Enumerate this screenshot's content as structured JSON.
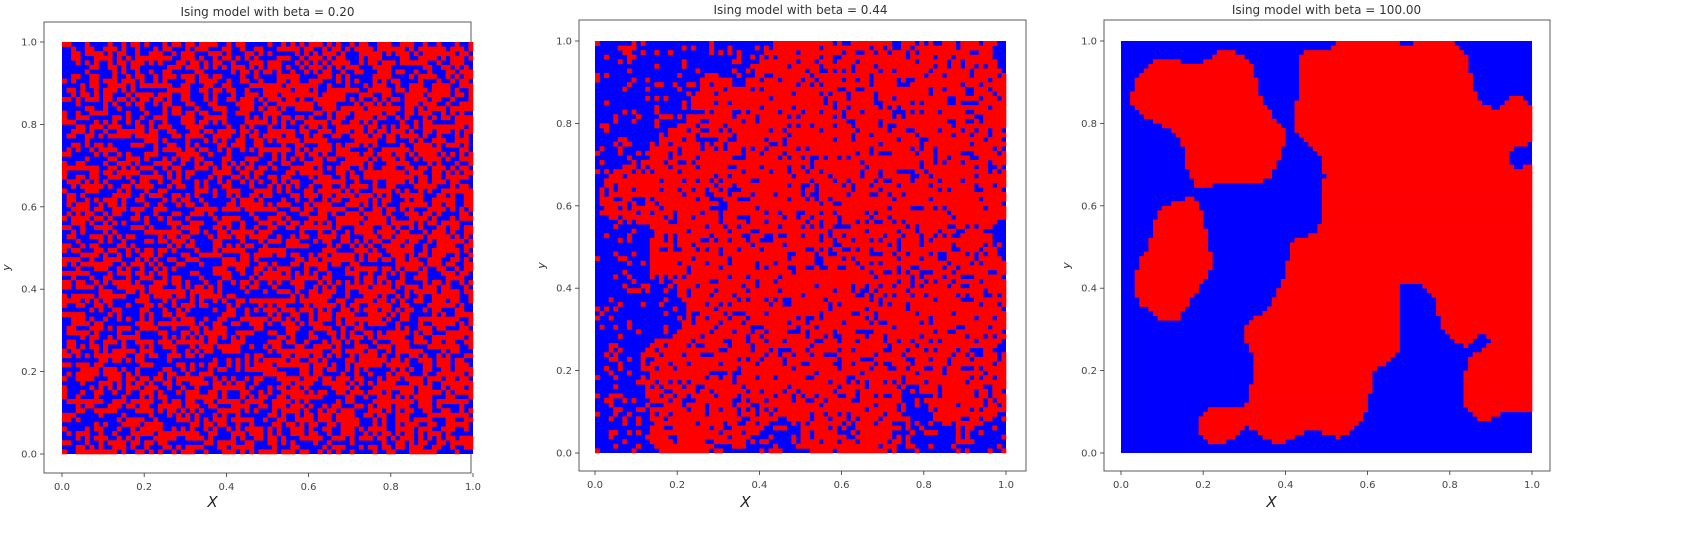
{
  "colors": {
    "spin_down": "#0000ff",
    "spin_up": "#ff0000",
    "axes_frame": "#333333"
  },
  "chart_data": [
    {
      "type": "heatmap",
      "title": "Ising model with beta = 0.20",
      "xlabel": "X",
      "ylabel": "y",
      "xlim": [
        0,
        1
      ],
      "ylim": [
        0,
        1
      ],
      "xticks": [
        "0.0",
        "0.2",
        "0.4",
        "0.6",
        "0.8",
        "1.0"
      ],
      "yticks": [
        "0.0",
        "0.2",
        "0.4",
        "0.6",
        "0.8",
        "1.0"
      ],
      "grid": false,
      "cmap": [
        "blue",
        "red"
      ],
      "blobs": [],
      "noise": 0.5
    },
    {
      "type": "heatmap",
      "title": "Ising model with beta = 0.44",
      "xlabel": "X",
      "ylabel": "y",
      "xlim": [
        0,
        1
      ],
      "ylim": [
        0,
        1
      ],
      "xticks": [
        "0.0",
        "0.2",
        "0.4",
        "0.6",
        "0.8",
        "1.0"
      ],
      "yticks": [
        "0.0",
        "0.2",
        "0.4",
        "0.6",
        "0.8",
        "1.0"
      ],
      "grid": false,
      "cmap": [
        "blue",
        "red"
      ],
      "blobs": [
        [
          0.82,
          0.86,
          0.17
        ],
        [
          0.96,
          0.7,
          0.09
        ],
        [
          0.65,
          0.9,
          0.12
        ],
        [
          0.45,
          0.8,
          0.1
        ],
        [
          0.28,
          0.75,
          0.1
        ],
        [
          0.1,
          0.64,
          0.06
        ],
        [
          0.22,
          0.5,
          0.08
        ],
        [
          0.55,
          0.55,
          0.1
        ],
        [
          0.75,
          0.55,
          0.1
        ],
        [
          0.95,
          0.4,
          0.08
        ],
        [
          0.35,
          0.35,
          0.09
        ],
        [
          0.65,
          0.33,
          0.1
        ],
        [
          0.85,
          0.28,
          0.08
        ],
        [
          0.25,
          0.12,
          0.13
        ],
        [
          0.62,
          0.12,
          0.11
        ],
        [
          0.93,
          0.12,
          0.06
        ],
        [
          0.48,
          0.22,
          0.07
        ]
      ],
      "noise": 0.18
    },
    {
      "type": "heatmap",
      "title": "Ising model with beta = 100.00",
      "xlabel": "X",
      "ylabel": "y",
      "xlim": [
        0,
        1
      ],
      "ylim": [
        0,
        1
      ],
      "xticks": [
        "0.0",
        "0.2",
        "0.4",
        "0.6",
        "0.8",
        "1.0"
      ],
      "yticks": [
        "0.0",
        "0.2",
        "0.4",
        "0.6",
        "0.8",
        "1.0"
      ],
      "grid": false,
      "cmap": [
        "blue",
        "red"
      ],
      "blobs": [
        [
          0.73,
          0.78,
          0.19
        ],
        [
          0.9,
          0.5,
          0.13
        ],
        [
          0.95,
          0.18,
          0.09
        ],
        [
          0.58,
          0.88,
          0.09
        ],
        [
          0.22,
          0.86,
          0.09
        ],
        [
          0.08,
          0.88,
          0.05
        ],
        [
          0.28,
          0.73,
          0.07
        ],
        [
          0.14,
          0.56,
          0.045
        ],
        [
          0.12,
          0.41,
          0.08
        ],
        [
          0.66,
          0.6,
          0.08
        ],
        [
          0.5,
          0.45,
          0.07
        ],
        [
          0.42,
          0.3,
          0.07
        ],
        [
          0.58,
          0.33,
          0.08
        ],
        [
          0.42,
          0.12,
          0.09
        ],
        [
          0.55,
          0.13,
          0.05
        ],
        [
          0.24,
          0.07,
          0.035
        ]
      ],
      "noise": 0.0
    }
  ]
}
